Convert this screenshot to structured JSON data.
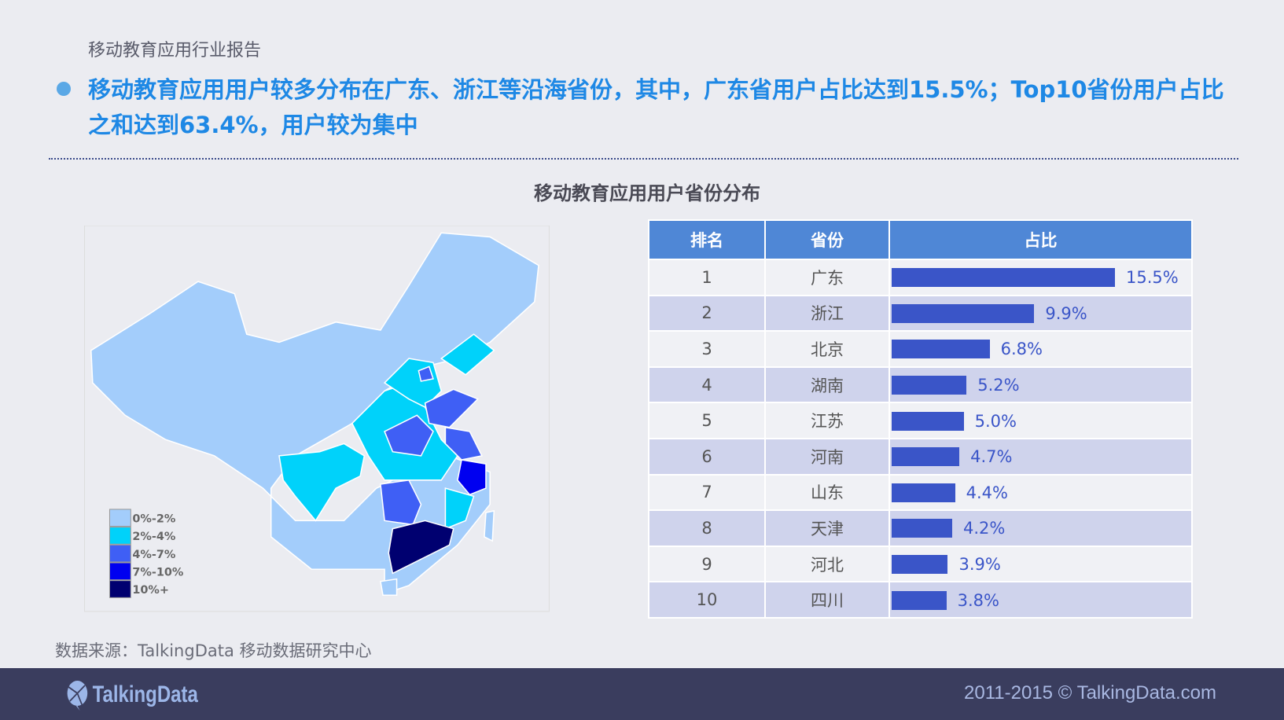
{
  "header": {
    "report_title": "移动教育应用行业报告",
    "headline": "移动教育应用用户较多分布在广东、浙江等沿海省份，其中，广东省用户占比达到15.5%；Top10省份用户占比之和达到63.4%，用户较为集中"
  },
  "chart_title": "移动教育应用用户省份分布",
  "legend": [
    {
      "label": "0%-2%",
      "color": "#a3cdfb"
    },
    {
      "label": "2%-4%",
      "color": "#00d2fa"
    },
    {
      "label": "4%-7%",
      "color": "#3f5ff5"
    },
    {
      "label": "7%-10%",
      "color": "#0000f0"
    },
    {
      "label": "10%+",
      "color": "#000070"
    }
  ],
  "table": {
    "headers": [
      "排名",
      "省份",
      "占比"
    ],
    "rows": [
      {
        "rank": "1",
        "province": "广东",
        "value": 15.5,
        "label": "15.5%"
      },
      {
        "rank": "2",
        "province": "浙江",
        "value": 9.9,
        "label": "9.9%"
      },
      {
        "rank": "3",
        "province": "北京",
        "value": 6.8,
        "label": "6.8%"
      },
      {
        "rank": "4",
        "province": "湖南",
        "value": 5.2,
        "label": "5.2%"
      },
      {
        "rank": "5",
        "province": "江苏",
        "value": 5.0,
        "label": "5.0%"
      },
      {
        "rank": "6",
        "province": "河南",
        "value": 4.7,
        "label": "4.7%"
      },
      {
        "rank": "7",
        "province": "山东",
        "value": 4.4,
        "label": "4.4%"
      },
      {
        "rank": "8",
        "province": "天津",
        "value": 4.2,
        "label": "4.2%"
      },
      {
        "rank": "9",
        "province": "河北",
        "value": 3.9,
        "label": "3.9%"
      },
      {
        "rank": "10",
        "province": "四川",
        "value": 3.8,
        "label": "3.8%"
      }
    ]
  },
  "source": "数据来源：TalkingData 移动数据研究中心",
  "footer": {
    "logo": "TalkingData",
    "copyright": "2011-2015 © TalkingData.com"
  }
}
